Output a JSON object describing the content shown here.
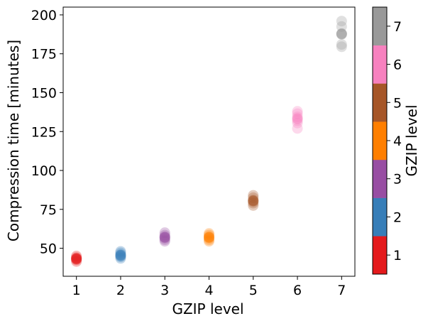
{
  "chart_data": {
    "type": "scatter",
    "xlabel": "GZIP level",
    "ylabel": "Compression time [minutes]",
    "xlim": [
      0.7,
      7.3
    ],
    "ylim": [
      32,
      205
    ],
    "x_ticks": [
      "1",
      "2",
      "3",
      "4",
      "5",
      "6",
      "7"
    ],
    "y_ticks": [
      "50",
      "75",
      "100",
      "125",
      "150",
      "175",
      "200"
    ],
    "colorbar": {
      "label": "GZIP level",
      "ticks": [
        "1",
        "2",
        "3",
        "4",
        "5",
        "6",
        "7"
      ],
      "colors": [
        "#e41a1c",
        "#377eb8",
        "#984ea3",
        "#ff7f00",
        "#a65628",
        "#f781bf",
        "#999999"
      ]
    },
    "series": [
      {
        "name": "1",
        "x": 1,
        "values": [
          41.5,
          42.5,
          43.0,
          43.5,
          44.0,
          45.0
        ]
      },
      {
        "name": "2",
        "x": 2,
        "values": [
          43.5,
          44.5,
          45.0,
          46.0,
          47.0,
          48.0
        ]
      },
      {
        "name": "3",
        "x": 3,
        "values": [
          54.5,
          55.5,
          56.5,
          57.5,
          58.5,
          60.0
        ]
      },
      {
        "name": "4",
        "x": 4,
        "values": [
          54.5,
          55.5,
          56.5,
          57.5,
          58.5,
          59.5
        ]
      },
      {
        "name": "5",
        "x": 5,
        "values": [
          77.5,
          79.0,
          80.0,
          81.0,
          82.5,
          84.0
        ]
      },
      {
        "name": "6",
        "x": 6,
        "values": [
          127.0,
          130.5,
          132.0,
          134.5,
          136.5,
          138.0
        ]
      },
      {
        "name": "7",
        "x": 7,
        "values": [
          179.5,
          181.0,
          187.5,
          188.0,
          192.5,
          196.0
        ]
      }
    ]
  }
}
